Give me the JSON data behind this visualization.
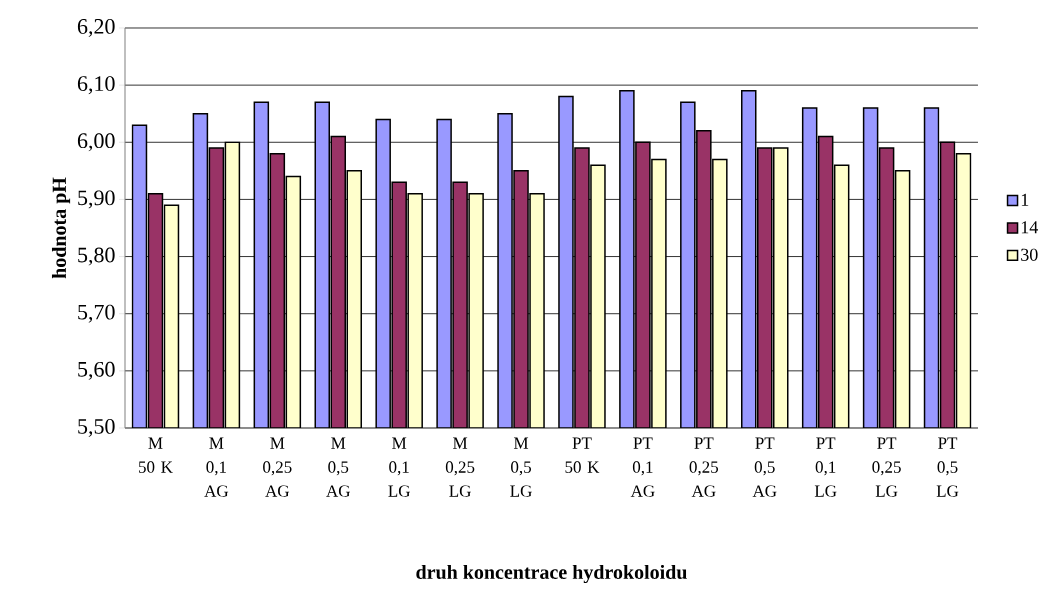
{
  "chart_data": {
    "type": "bar",
    "xlabel": "druh koncentrace hydrokoloidu",
    "ylabel": "hodnota pH",
    "categories": [
      "M 50 K",
      "M 0,1 AG",
      "M 0,25 AG",
      "M 0,5 AG",
      "M 0,1 LG",
      "M 0,25 LG",
      "M 0,5 LG",
      "PT 50 K",
      "PT 0,1 AG",
      "PT 0,25 AG",
      "PT 0,5 AG",
      "PT 0,1 LG",
      "PT 0,25 LG",
      "PT 0,5 LG"
    ],
    "series": [
      {
        "name": "1",
        "color": "#9999ff",
        "values": [
          6.03,
          6.05,
          6.07,
          6.07,
          6.04,
          6.04,
          6.05,
          6.08,
          6.09,
          6.07,
          6.09,
          6.06,
          6.06,
          6.06
        ]
      },
      {
        "name": "14",
        "color": "#993366",
        "values": [
          5.91,
          5.99,
          5.98,
          6.01,
          5.93,
          5.93,
          5.95,
          5.99,
          6.0,
          6.02,
          5.99,
          6.01,
          5.99,
          6.0
        ]
      },
      {
        "name": "30",
        "color": "#ffffcc",
        "values": [
          5.89,
          6.0,
          5.94,
          5.95,
          5.91,
          5.91,
          5.91,
          5.96,
          5.97,
          5.97,
          5.99,
          5.96,
          5.95,
          5.98
        ]
      }
    ],
    "ylim": [
      5.5,
      6.2
    ],
    "yticks": [
      {
        "value": 5.5,
        "label": "5,50"
      },
      {
        "value": 5.6,
        "label": "5,60"
      },
      {
        "value": 5.7,
        "label": "5,70"
      },
      {
        "value": 5.8,
        "label": "5,80"
      },
      {
        "value": 5.9,
        "label": "5,90"
      },
      {
        "value": 6.0,
        "label": "6,00"
      },
      {
        "value": 6.1,
        "label": "6,10"
      },
      {
        "value": 6.2,
        "label": "6,20"
      }
    ],
    "grid": "y",
    "legend": "right"
  }
}
